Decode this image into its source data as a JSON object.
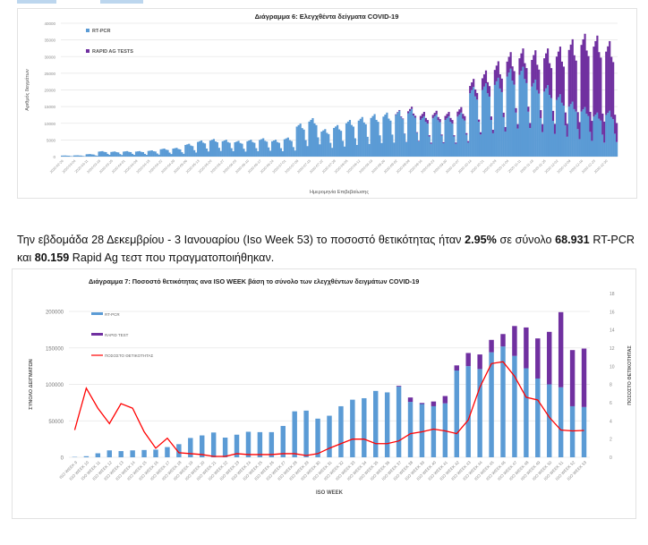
{
  "header": {
    "tabs": [
      "",
      ""
    ]
  },
  "paragraph": {
    "part1": "Την εβδομάδα 28 Δεκεμβρίου - 3 Ιανουαρίου (Iso Week 53) το ποσοστό θετικότητας ήταν ",
    "positivity": "2.95%",
    "part2": " σε σύνολο ",
    "pcr_total": "68.931",
    "part3": " RT-PCR και ",
    "rapid_total": "80.159",
    "part4": " Rapid Ag τεστ που πραγματοποιήθηκαν."
  },
  "colors": {
    "pcr": "#5b9bd5",
    "rapid": "#7030a0",
    "line": "#ff0000",
    "grid": "#e6e6e6",
    "axis_text": "#8c8c8c"
  },
  "chart_data": [
    {
      "type": "bar",
      "stacked": true,
      "title": "Διάγραμμα 6: Ελεγχθέντα δείγματα COVID-19",
      "xlabel": "Ημερομηνία Επιβεβαίωσης",
      "ylabel": "Αριθμός δειγμάτων",
      "ylim": [
        0,
        40000
      ],
      "yticks": [
        0,
        5000,
        10000,
        15000,
        20000,
        25000,
        30000,
        35000,
        40000
      ],
      "legend": [
        "RT-PCR",
        "RAPID AG TESTS"
      ],
      "legend_position": "top-left",
      "xtick_labels": [
        "2020-02-26",
        "2020-03-04",
        "2020-03-11",
        "2020-03-18",
        "2020-03-25",
        "2020-04-01",
        "2020-04-08",
        "2020-04-15",
        "2020-04-22",
        "2020-04-29",
        "2020-05-06",
        "2020-05-13",
        "2020-05-20",
        "2020-05-27",
        "2020-06-03",
        "2020-06-10",
        "2020-06-17",
        "2020-06-24",
        "2020-07-01",
        "2020-07-08",
        "2020-07-15",
        "2020-07-22",
        "2020-07-29",
        "2020-08-05",
        "2020-08-12",
        "2020-08-19",
        "2020-08-26",
        "2020-09-02",
        "2020-09-09",
        "2020-09-16",
        "2020-09-23",
        "2020-09-30",
        "2020-10-07",
        "2020-10-14",
        "2020-10-21",
        "2020-10-28",
        "2020-11-04",
        "2020-11-11",
        "2020-11-18",
        "2020-11-25",
        "2020-12-02",
        "2020-12-09",
        "2020-12-16",
        "2020-12-23",
        "2020-12-30"
      ],
      "weekly_pattern_note": "daily values; approximated per week",
      "weeks_pcr": [
        300,
        350,
        700,
        1500,
        1400,
        1500,
        1500,
        1700,
        2200,
        2400,
        3500,
        4400,
        4800,
        4600,
        4300,
        4600,
        5000,
        4600,
        5200,
        9000,
        10500,
        7500,
        8600,
        10000,
        10800,
        11600,
        12000,
        12500,
        13000,
        11000,
        11500,
        11000,
        12000,
        19000,
        20000,
        21500,
        24000,
        24500,
        21000,
        19500,
        17000,
        15000,
        13500,
        12000,
        12500
      ],
      "weeks_rapid": [
        0,
        0,
        0,
        0,
        0,
        0,
        0,
        0,
        0,
        0,
        0,
        0,
        0,
        0,
        0,
        0,
        0,
        0,
        0,
        0,
        0,
        0,
        0,
        0,
        0,
        0,
        0,
        200,
        600,
        1200,
        1000,
        1200,
        1500,
        2200,
        3500,
        4500,
        4500,
        5000,
        8000,
        10000,
        13000,
        17000,
        20000,
        21000,
        19000
      ]
    },
    {
      "type": "bar",
      "stacked": true,
      "title": "Διάγραμμα 7: Ποσοστό θετικότητας ανα ISO WEEK  βάση το σύνολο των ελεγχθέντων δειγμάτων COVID-19",
      "xlabel": "ISO WEEK",
      "ylabel": "ΣΥΝΟΛΟ  ΔΕΙΓΜΑΤΩΝ",
      "ylabel_right": "ΠΟΣΟΣΤΟ ΘΕΤΙΚΟΤΗΤΑΣ",
      "ylim": [
        0,
        200000
      ],
      "yticks": [
        0,
        50000,
        100000,
        150000,
        200000
      ],
      "ylim_right": [
        0,
        18
      ],
      "yticks_right": [
        0,
        2,
        4,
        6,
        8,
        10,
        12,
        14,
        16,
        18
      ],
      "legend": [
        "RT-PCR",
        "RAPID TEST",
        "ΠΟΣΟΣΤΟ ΘΕΤΙΚΟΤΗΤΑΣ"
      ],
      "legend_position": "top-left",
      "categories": [
        "ISO WEEK 9",
        "ISO WEEK 10",
        "ISO WEEK 11",
        "ISO WEEK 12",
        "ISO WEEK 13",
        "ISO WEEK 14",
        "ISO WEEK 15",
        "ISO WEEK 16",
        "ISO WEEK 17",
        "ISO WEEK 18",
        "ISO WEEK 19",
        "ISO WEEK 20",
        "ISO WEEK 21",
        "ISO WEEK 22",
        "ISO WEEK 23",
        "ISO WEEK 24",
        "ISO WEEK 25",
        "ISO WEEK 26",
        "ISO WEEK 27",
        "ISO WEEK 28",
        "ISO WEEK 29",
        "ISO WEEK 30",
        "ISO WEEK 31",
        "ISO WEEK 32",
        "ISO WEEK 33",
        "ISO WEEK 34",
        "ISO WEEK 35",
        "ISO WEEK 36",
        "ISO WEEK 37",
        "ISO WEEK 38",
        "ISO WEEK 39",
        "ISO WEEK 40",
        "ISO WEEK 41",
        "ISO WEEK 42",
        "ISO WEEK 43",
        "ISO WEEK 44",
        "ISO WEEK 45",
        "ISO WEEK 46",
        "ISO WEEK 47",
        "ISO WEEK 48",
        "ISO WEEK 49",
        "ISO WEEK 50",
        "ISO WEEK 51",
        "ISO WEEK 52",
        "ISO WEEK 53"
      ],
      "series": [
        {
          "name": "RT-PCR",
          "values": [
            500,
            1500,
            5500,
            9500,
            8500,
            9500,
            10000,
            10500,
            14000,
            18000,
            26500,
            30000,
            34000,
            27000,
            31000,
            35000,
            34500,
            34500,
            43000,
            63000,
            64000,
            53000,
            57000,
            70000,
            79000,
            81000,
            91000,
            89000,
            97000,
            76000,
            73000,
            70000,
            74000,
            119000,
            125000,
            121000,
            144000,
            152000,
            139000,
            122000,
            108000,
            100000,
            96000,
            70000,
            68931
          ]
        },
        {
          "name": "RAPID TEST",
          "values": [
            0,
            0,
            0,
            0,
            0,
            0,
            0,
            0,
            0,
            0,
            0,
            0,
            0,
            0,
            0,
            0,
            0,
            0,
            0,
            0,
            0,
            0,
            0,
            0,
            0,
            0,
            0,
            0,
            1000,
            6000,
            1500,
            6500,
            10000,
            7000,
            18000,
            20000,
            17000,
            17000,
            41000,
            56000,
            55000,
            72000,
            103000,
            77000,
            80159
          ]
        },
        {
          "name": "ΠΟΣΟΣΤΟ ΘΕΤΙΚΟΤΗΤΑΣ",
          "axis": "right",
          "values": [
            3.0,
            7.6,
            5.4,
            3.7,
            5.9,
            5.4,
            2.8,
            1.0,
            2.1,
            0.5,
            0.4,
            0.3,
            0.1,
            0.1,
            0.4,
            0.3,
            0.3,
            0.3,
            0.4,
            0.4,
            0.2,
            0.4,
            1.0,
            1.5,
            2.0,
            2.0,
            1.5,
            1.5,
            1.8,
            2.6,
            2.8,
            3.1,
            2.9,
            2.6,
            4.1,
            7.7,
            10.3,
            10.5,
            8.9,
            6.6,
            6.3,
            4.4,
            3.0,
            2.9,
            2.95
          ]
        }
      ]
    }
  ]
}
